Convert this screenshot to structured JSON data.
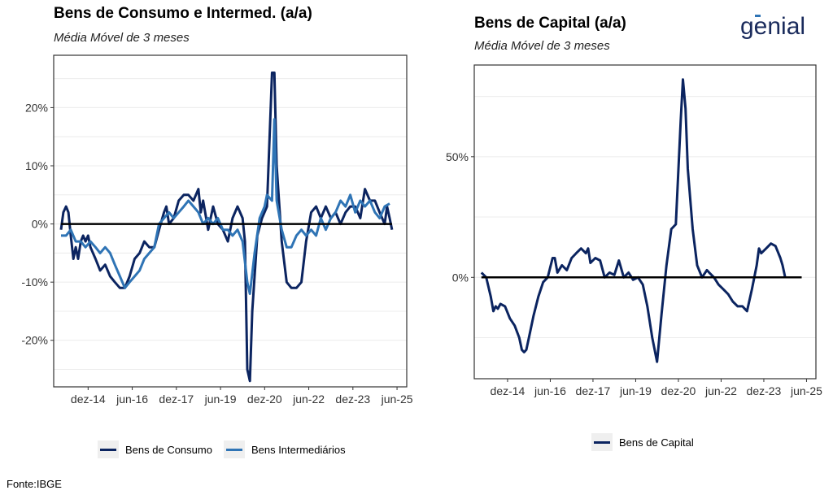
{
  "colors": {
    "consumo": "#0b2460",
    "intermed": "#2f74b5",
    "zero": "#000000",
    "logo": "#1a2b5c"
  },
  "logo": {
    "text": "genial",
    "icon": "logo-mark"
  },
  "footer": "Fonte:IBGE",
  "chart_data": [
    {
      "type": "line",
      "title": "Bens de Consumo e Intermed. (a/a)",
      "subtitle": "Média Móvel de 3 meses",
      "xlabel": "",
      "ylabel": "",
      "x_ticks": [
        "dez-14",
        "jun-16",
        "dez-17",
        "jun-19",
        "dez-20",
        "jun-22",
        "dez-23",
        "jun-25"
      ],
      "x_range": [
        2013.75,
        2025.75
      ],
      "y_ticks": [
        20,
        10,
        0,
        -10,
        -20
      ],
      "y_tick_labels": [
        "20%",
        "10%",
        "0%",
        "-10%",
        "-20%"
      ],
      "ylim": [
        -28,
        29
      ],
      "zero_line": 0,
      "legend": "bottom",
      "series": [
        {
          "name": "Bens de Consumo",
          "color_key": "consumo",
          "points": [
            [
              2014.0,
              -1
            ],
            [
              2014.08,
              2
            ],
            [
              2014.17,
              3
            ],
            [
              2014.25,
              2
            ],
            [
              2014.33,
              -2
            ],
            [
              2014.42,
              -6
            ],
            [
              2014.5,
              -4
            ],
            [
              2014.58,
              -6
            ],
            [
              2014.67,
              -3
            ],
            [
              2014.75,
              -2
            ],
            [
              2014.83,
              -3
            ],
            [
              2014.92,
              -2
            ],
            [
              2015.0,
              -4
            ],
            [
              2015.17,
              -6
            ],
            [
              2015.33,
              -8
            ],
            [
              2015.5,
              -7
            ],
            [
              2015.67,
              -9
            ],
            [
              2015.83,
              -10
            ],
            [
              2016.0,
              -11
            ],
            [
              2016.17,
              -11
            ],
            [
              2016.33,
              -9
            ],
            [
              2016.5,
              -6
            ],
            [
              2016.67,
              -5
            ],
            [
              2016.83,
              -3
            ],
            [
              2017.0,
              -4
            ],
            [
              2017.17,
              -4
            ],
            [
              2017.33,
              -1
            ],
            [
              2017.5,
              2
            ],
            [
              2017.58,
              3
            ],
            [
              2017.67,
              0
            ],
            [
              2017.83,
              1
            ],
            [
              2018.0,
              4
            ],
            [
              2018.17,
              5
            ],
            [
              2018.33,
              5
            ],
            [
              2018.5,
              4
            ],
            [
              2018.67,
              6
            ],
            [
              2018.75,
              2
            ],
            [
              2018.83,
              4
            ],
            [
              2019.0,
              -1
            ],
            [
              2019.17,
              3
            ],
            [
              2019.33,
              0
            ],
            [
              2019.5,
              -1
            ],
            [
              2019.67,
              -3
            ],
            [
              2019.83,
              1
            ],
            [
              2020.0,
              3
            ],
            [
              2020.17,
              1
            ],
            [
              2020.25,
              -3
            ],
            [
              2020.33,
              -25
            ],
            [
              2020.42,
              -27
            ],
            [
              2020.5,
              -15
            ],
            [
              2020.67,
              -2
            ],
            [
              2020.83,
              1
            ],
            [
              2021.0,
              3
            ],
            [
              2021.17,
              26
            ],
            [
              2021.25,
              26
            ],
            [
              2021.33,
              10
            ],
            [
              2021.5,
              -3
            ],
            [
              2021.67,
              -10
            ],
            [
              2021.83,
              -11
            ],
            [
              2022.0,
              -11
            ],
            [
              2022.17,
              -10
            ],
            [
              2022.33,
              -3
            ],
            [
              2022.5,
              2
            ],
            [
              2022.67,
              3
            ],
            [
              2022.83,
              1
            ],
            [
              2023.0,
              3
            ],
            [
              2023.17,
              1
            ],
            [
              2023.33,
              2
            ],
            [
              2023.5,
              0
            ],
            [
              2023.67,
              2
            ],
            [
              2023.83,
              3
            ],
            [
              2024.0,
              3
            ],
            [
              2024.17,
              1
            ],
            [
              2024.33,
              6
            ],
            [
              2024.5,
              4
            ],
            [
              2024.67,
              4
            ],
            [
              2024.83,
              2
            ],
            [
              2025.0,
              0
            ],
            [
              2025.08,
              3
            ],
            [
              2025.17,
              1
            ],
            [
              2025.25,
              -1
            ]
          ]
        },
        {
          "name": "Bens Intermediários",
          "color_key": "intermed",
          "points": [
            [
              2014.0,
              -2
            ],
            [
              2014.17,
              -2
            ],
            [
              2014.33,
              -1
            ],
            [
              2014.5,
              -3
            ],
            [
              2014.67,
              -3
            ],
            [
              2014.83,
              -4
            ],
            [
              2015.0,
              -3
            ],
            [
              2015.17,
              -4
            ],
            [
              2015.33,
              -5
            ],
            [
              2015.5,
              -4
            ],
            [
              2015.67,
              -5
            ],
            [
              2015.83,
              -7
            ],
            [
              2016.0,
              -9
            ],
            [
              2016.17,
              -11
            ],
            [
              2016.33,
              -10
            ],
            [
              2016.5,
              -9
            ],
            [
              2016.67,
              -8
            ],
            [
              2016.83,
              -6
            ],
            [
              2017.0,
              -5
            ],
            [
              2017.17,
              -4
            ],
            [
              2017.33,
              0
            ],
            [
              2017.5,
              1
            ],
            [
              2017.67,
              2
            ],
            [
              2017.83,
              1
            ],
            [
              2018.0,
              2
            ],
            [
              2018.17,
              3
            ],
            [
              2018.33,
              4
            ],
            [
              2018.5,
              3
            ],
            [
              2018.67,
              2
            ],
            [
              2018.83,
              0
            ],
            [
              2019.0,
              1
            ],
            [
              2019.17,
              0
            ],
            [
              2019.33,
              1
            ],
            [
              2019.5,
              -1
            ],
            [
              2019.67,
              -1
            ],
            [
              2019.83,
              -2
            ],
            [
              2020.0,
              -1
            ],
            [
              2020.17,
              -3
            ],
            [
              2020.33,
              -10
            ],
            [
              2020.42,
              -12
            ],
            [
              2020.58,
              -5
            ],
            [
              2020.75,
              1
            ],
            [
              2020.92,
              3
            ],
            [
              2021.0,
              5
            ],
            [
              2021.17,
              4
            ],
            [
              2021.25,
              18
            ],
            [
              2021.33,
              4
            ],
            [
              2021.5,
              -1
            ],
            [
              2021.67,
              -4
            ],
            [
              2021.83,
              -4
            ],
            [
              2022.0,
              -2
            ],
            [
              2022.17,
              -1
            ],
            [
              2022.33,
              -2
            ],
            [
              2022.5,
              -1
            ],
            [
              2022.67,
              -2
            ],
            [
              2022.83,
              1
            ],
            [
              2023.0,
              -1
            ],
            [
              2023.17,
              1
            ],
            [
              2023.33,
              2
            ],
            [
              2023.5,
              4
            ],
            [
              2023.67,
              3
            ],
            [
              2023.83,
              5
            ],
            [
              2024.0,
              2
            ],
            [
              2024.17,
              4
            ],
            [
              2024.33,
              3
            ],
            [
              2024.5,
              4
            ],
            [
              2024.67,
              2
            ],
            [
              2024.83,
              1
            ],
            [
              2025.0,
              3
            ],
            [
              2025.17,
              3.5
            ]
          ]
        }
      ]
    },
    {
      "type": "line",
      "title": "Bens de Capital (a/a)",
      "subtitle": "Média Móvel de 3 meses",
      "xlabel": "",
      "ylabel": "",
      "x_ticks": [
        "dez-14",
        "jun-16",
        "dez-17",
        "jun-19",
        "dez-20",
        "jun-22",
        "dez-23",
        "jun-25"
      ],
      "x_range": [
        2013.75,
        2025.75
      ],
      "y_ticks": [
        50,
        0
      ],
      "y_tick_labels": [
        "50%",
        "0%"
      ],
      "ylim": [
        -42,
        88
      ],
      "zero_line": 0,
      "legend": "bottom",
      "series": [
        {
          "name": "Bens de Capital",
          "color_key": "consumo",
          "points": [
            [
              2014.0,
              2
            ],
            [
              2014.17,
              0
            ],
            [
              2014.33,
              -8
            ],
            [
              2014.42,
              -14
            ],
            [
              2014.5,
              -12
            ],
            [
              2014.58,
              -13
            ],
            [
              2014.67,
              -11
            ],
            [
              2014.83,
              -12
            ],
            [
              2015.0,
              -17
            ],
            [
              2015.17,
              -20
            ],
            [
              2015.33,
              -25
            ],
            [
              2015.42,
              -30
            ],
            [
              2015.5,
              -31
            ],
            [
              2015.58,
              -30
            ],
            [
              2015.67,
              -25
            ],
            [
              2015.83,
              -16
            ],
            [
              2016.0,
              -8
            ],
            [
              2016.17,
              -2
            ],
            [
              2016.33,
              0
            ],
            [
              2016.5,
              8
            ],
            [
              2016.58,
              8
            ],
            [
              2016.67,
              2
            ],
            [
              2016.83,
              5
            ],
            [
              2017.0,
              3
            ],
            [
              2017.17,
              8
            ],
            [
              2017.33,
              10
            ],
            [
              2017.5,
              12
            ],
            [
              2017.67,
              10
            ],
            [
              2017.75,
              12
            ],
            [
              2017.83,
              6
            ],
            [
              2018.0,
              8
            ],
            [
              2018.17,
              7
            ],
            [
              2018.33,
              0
            ],
            [
              2018.5,
              2
            ],
            [
              2018.67,
              1
            ],
            [
              2018.83,
              7
            ],
            [
              2019.0,
              0
            ],
            [
              2019.17,
              2
            ],
            [
              2019.33,
              -1
            ],
            [
              2019.5,
              0
            ],
            [
              2019.67,
              -3
            ],
            [
              2019.83,
              -12
            ],
            [
              2020.0,
              -25
            ],
            [
              2020.17,
              -35
            ],
            [
              2020.33,
              -15
            ],
            [
              2020.5,
              5
            ],
            [
              2020.67,
              20
            ],
            [
              2020.83,
              22
            ],
            [
              2021.0,
              65
            ],
            [
              2021.08,
              82
            ],
            [
              2021.17,
              70
            ],
            [
              2021.25,
              45
            ],
            [
              2021.42,
              20
            ],
            [
              2021.58,
              5
            ],
            [
              2021.75,
              0
            ],
            [
              2021.92,
              3
            ],
            [
              2022.0,
              2
            ],
            [
              2022.17,
              0
            ],
            [
              2022.33,
              -3
            ],
            [
              2022.5,
              -5
            ],
            [
              2022.67,
              -7
            ],
            [
              2022.83,
              -10
            ],
            [
              2023.0,
              -12
            ],
            [
              2023.17,
              -12
            ],
            [
              2023.33,
              -14
            ],
            [
              2023.5,
              -5
            ],
            [
              2023.67,
              5
            ],
            [
              2023.75,
              12
            ],
            [
              2023.83,
              10
            ],
            [
              2024.0,
              12
            ],
            [
              2024.17,
              14
            ],
            [
              2024.33,
              13
            ],
            [
              2024.5,
              8
            ],
            [
              2024.58,
              5
            ],
            [
              2024.67,
              0
            ]
          ]
        }
      ]
    }
  ]
}
